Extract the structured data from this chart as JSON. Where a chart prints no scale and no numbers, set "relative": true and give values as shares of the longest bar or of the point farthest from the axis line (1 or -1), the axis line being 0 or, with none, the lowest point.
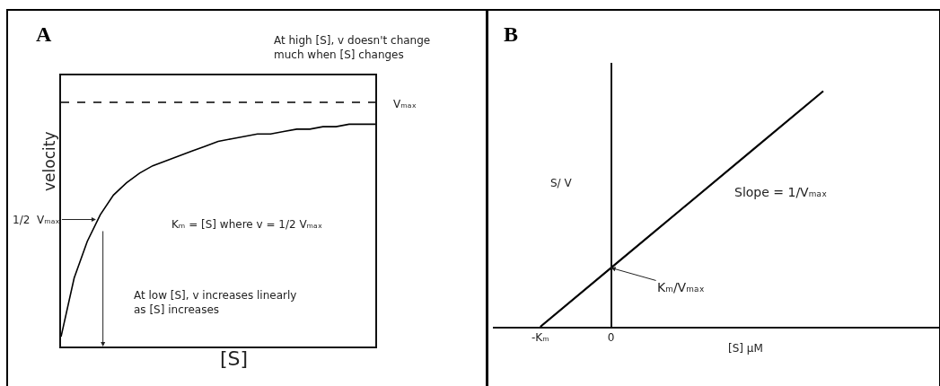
{
  "chart_data": [
    {
      "type": "line",
      "title": "A",
      "xlabel": "[S]",
      "ylabel": "velocity",
      "relative": true,
      "marker": "none",
      "tick_labels": false,
      "categories": [
        null,
        null,
        null,
        null,
        null,
        null,
        null,
        null,
        null,
        null,
        null,
        null,
        null,
        null,
        null,
        null,
        null,
        null,
        null,
        null,
        null,
        null,
        null,
        null,
        null
      ],
      "series": [
        {
          "color": "#000000",
          "line_style": "solid",
          "values": [
            0.04,
            0.28,
            0.43,
            0.54,
            0.62,
            0.67,
            0.71,
            0.74,
            0.76,
            0.78,
            0.8,
            0.82,
            0.84,
            0.85,
            0.86,
            0.87,
            0.87,
            0.88,
            0.89,
            0.89,
            0.9,
            0.9,
            0.91,
            0.91,
            0.91
          ]
        },
        {
          "color": "#000000",
          "line_style": "dashed",
          "values": [
            1,
            1,
            1,
            1,
            1,
            1,
            1,
            1,
            1,
            1,
            1,
            1,
            1,
            1,
            1,
            1,
            1,
            1,
            1,
            1,
            1,
            1,
            1,
            1,
            1
          ]
        }
      ],
      "annotations": [
        "At high [S], v doesn't change\nmuch when [S] changes",
        "Vₘₐₓ",
        "1/2  Vₘₐₓ",
        "Kₘ = [S] where v = 1/2 Vₘₐₓ",
        "At low [S], v increases linearly\nas [S] increases"
      ]
    },
    {
      "type": "line",
      "title": "B",
      "xlabel": "[S] µM",
      "ylabel": "S/ V",
      "relative": true,
      "marker": "none",
      "tick_labels": "x",
      "categories": [
        "-Kₘ",
        "0",
        null,
        null,
        null
      ],
      "series": [
        {
          "color": "#000000",
          "line_style": "solid",
          "values": [
            0,
            0.25,
            0.5,
            0.75,
            1
          ]
        }
      ],
      "annotations": [
        "Slope = 1/Vₘₐₓ",
        "Kₘ/Vₘₐₓ"
      ]
    }
  ]
}
